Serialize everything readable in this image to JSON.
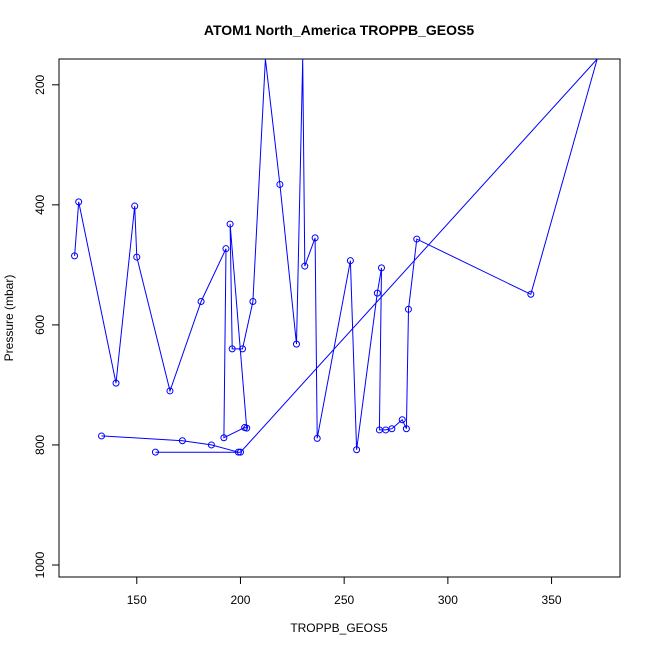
{
  "chart_data": {
    "type": "line",
    "title": "ATOM1 North_America TROPPB_GEOS5",
    "xlabel": "TROPPB_GEOS5",
    "ylabel": "Pressure (mbar)",
    "xlim": [
      112.5,
      383
    ],
    "ylim": [
      1020,
      157
    ],
    "y_reversed": true,
    "x_ticks": [
      150,
      200,
      250,
      300,
      350
    ],
    "y_ticks": [
      200,
      400,
      600,
      800,
      1000
    ],
    "grid": false,
    "legend": "none",
    "series_color": "#0000ff",
    "x": [
      120,
      122,
      140,
      149,
      150,
      166,
      181,
      193,
      192,
      202,
      203,
      195,
      196,
      201,
      206,
      212,
      219,
      227,
      230,
      231,
      236,
      237,
      253,
      256,
      266,
      268,
      267,
      270,
      273,
      278,
      280,
      281,
      285,
      340,
      372,
      200,
      159,
      199,
      186,
      172,
      133
    ],
    "y": [
      485,
      395,
      697,
      402,
      487,
      710,
      561,
      473,
      788,
      771,
      772,
      432,
      640,
      640,
      561,
      157,
      366,
      632,
      157,
      502,
      455,
      789,
      493,
      808,
      547,
      505,
      775,
      775,
      773,
      758,
      773,
      574,
      457,
      549,
      157,
      812,
      812,
      812,
      800,
      793,
      785
    ]
  }
}
